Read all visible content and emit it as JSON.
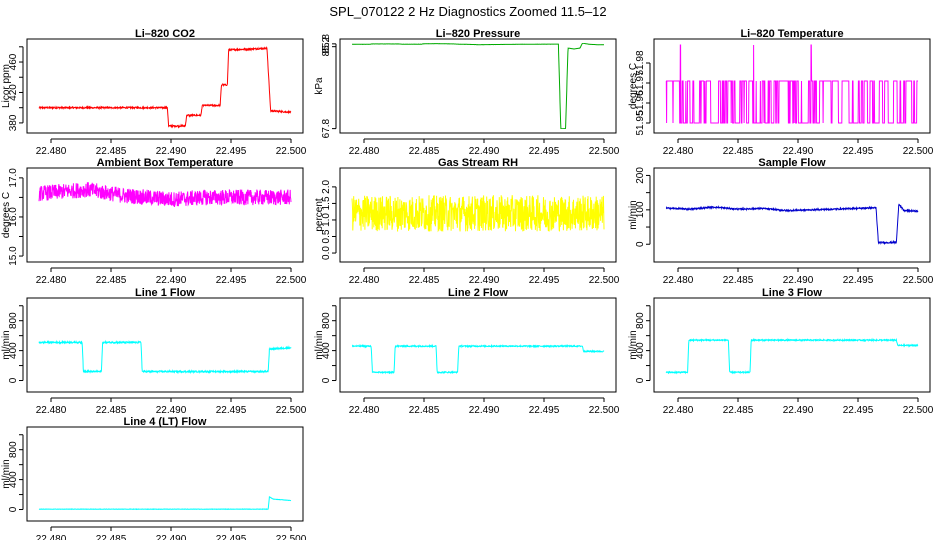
{
  "figure_title": "SPL_070122 2 Hz Diagnostics Zoomed 11.5–12",
  "chart_data": [
    {
      "type": "line",
      "title": "Li–820 CO2",
      "ylabel": "Licor ppm",
      "color": "#ff0000",
      "xlim": [
        22.4785,
        22.5005
      ],
      "ylim": [
        372,
        485
      ],
      "xticks": [
        "22.480",
        "22.485",
        "22.490",
        "22.495",
        "22.500"
      ],
      "yticks": [
        "380",
        "400",
        "420",
        "440",
        "460",
        "480"
      ],
      "ytick_label_every": 2,
      "steps": [
        [
          22.479,
          400
        ],
        [
          22.4897,
          400
        ],
        [
          22.4898,
          376
        ],
        [
          22.4912,
          376
        ],
        [
          22.4913,
          390
        ],
        [
          22.4925,
          390
        ],
        [
          22.4926,
          403
        ],
        [
          22.4941,
          403
        ],
        [
          22.4942,
          430
        ],
        [
          22.4947,
          430
        ],
        [
          22.4948,
          476
        ],
        [
          22.498,
          478
        ],
        [
          22.4983,
          396
        ],
        [
          22.5,
          394
        ]
      ],
      "noise": 1
    },
    {
      "type": "line",
      "title": "Li–820 Pressure",
      "ylabel": "kPa",
      "color": "#00aa00",
      "xlim": [
        22.4785,
        22.5005
      ],
      "ylim": [
        67.72,
        85.98
      ],
      "xticks": [
        "22.480",
        "22.485",
        "22.490",
        "22.495",
        "22.500"
      ],
      "yticks": [
        "67.8",
        "85.2",
        "85.8"
      ],
      "ytick_values": [
        67.8,
        85.2,
        85.8
      ],
      "steps": [
        [
          22.479,
          85.7
        ],
        [
          22.4805,
          85.7
        ],
        [
          22.4806,
          85.78
        ],
        [
          22.483,
          85.78
        ],
        [
          22.4831,
          85.73
        ],
        [
          22.4848,
          85.73
        ],
        [
          22.4849,
          85.8
        ],
        [
          22.486,
          85.85
        ],
        [
          22.4875,
          85.78
        ],
        [
          22.488,
          85.72
        ],
        [
          22.4893,
          85.65
        ],
        [
          22.4895,
          85.62
        ],
        [
          22.4905,
          85.65
        ],
        [
          22.492,
          85.68
        ],
        [
          22.4935,
          85.72
        ],
        [
          22.4962,
          85.75
        ],
        [
          22.4964,
          67.78
        ],
        [
          22.4968,
          67.8
        ],
        [
          22.497,
          84.9
        ],
        [
          22.4975,
          84.7
        ],
        [
          22.498,
          84.9
        ],
        [
          22.4982,
          85.95
        ],
        [
          22.4988,
          85.7
        ],
        [
          22.4995,
          85.62
        ],
        [
          22.5,
          85.6
        ]
      ],
      "noise": 0.01
    },
    {
      "type": "line",
      "title": "Li–820 Temperature",
      "ylabel": "degrees C",
      "color": "#ff00ff",
      "xlim": [
        22.4785,
        22.5005
      ],
      "ylim": [
        51.947,
        51.99
      ],
      "xticks": [
        "22.480",
        "22.485",
        "22.490",
        "22.495",
        "22.500"
      ],
      "yticks": [
        "51.95",
        "51.96",
        "51.97",
        "51.98"
      ],
      "ytick_values": [
        51.95,
        51.96,
        51.97,
        51.98
      ],
      "binary": [
        51.95,
        51.971
      ],
      "spikes": [
        22.4802,
        22.4863,
        22.4911
      ],
      "spike_value": 51.989
    },
    {
      "type": "line",
      "title": "Ambient Box Temperature",
      "ylabel": "degrees C",
      "color": "#ff00ff",
      "xlim": [
        22.4785,
        22.5005
      ],
      "ylim": [
        14.95,
        17.15
      ],
      "xticks": [
        "22.480",
        "22.485",
        "22.490",
        "22.495",
        "22.500"
      ],
      "yticks": [
        "15.0",
        "15.5",
        "16.0",
        "16.5",
        "17.0"
      ],
      "ytick_values": [
        15.0,
        15.5,
        16.0,
        16.5,
        17.0
      ],
      "ytick_label_every": 2,
      "steps": [
        [
          22.479,
          16.6
        ],
        [
          22.483,
          16.7
        ],
        [
          22.486,
          16.55
        ],
        [
          22.49,
          16.45
        ],
        [
          22.493,
          16.5
        ],
        [
          22.496,
          16.5
        ],
        [
          22.5,
          16.5
        ]
      ],
      "noise": 0.2
    },
    {
      "type": "line",
      "title": "Gas Stream RH",
      "ylabel": "percent",
      "color": "#ffff00",
      "xlim": [
        22.4785,
        22.5005
      ],
      "ylim": [
        -0.15,
        2.45
      ],
      "xticks": [
        "22.480",
        "22.485",
        "22.490",
        "22.495",
        "22.500"
      ],
      "yticks": [
        "0.0",
        "0.5",
        "1.0",
        "1.5",
        "2.0"
      ],
      "ytick_values": [
        0.0,
        0.5,
        1.0,
        1.5,
        2.0
      ],
      "steps": [
        [
          22.479,
          1.2
        ],
        [
          22.5,
          1.2
        ]
      ],
      "noise": 0.55
    },
    {
      "type": "line",
      "title": "Sample Flow",
      "ylabel": "ml/min",
      "color": "#0000cc",
      "xlim": [
        22.4785,
        22.5005
      ],
      "ylim": [
        -40,
        210
      ],
      "xticks": [
        "22.480",
        "22.485",
        "22.490",
        "22.495",
        "22.500"
      ],
      "yticks": [
        "0",
        "50",
        "100",
        "150",
        "200"
      ],
      "ytick_values": [
        0,
        50,
        100,
        150,
        200
      ],
      "ytick_label_every": 2,
      "steps": [
        [
          22.479,
          105
        ],
        [
          22.481,
          102
        ],
        [
          22.483,
          108
        ],
        [
          22.485,
          102
        ],
        [
          22.487,
          104
        ],
        [
          22.489,
          98
        ],
        [
          22.491,
          100
        ],
        [
          22.493,
          102
        ],
        [
          22.4965,
          106
        ],
        [
          22.4967,
          5
        ],
        [
          22.4982,
          5
        ],
        [
          22.4984,
          118
        ],
        [
          22.4988,
          98
        ],
        [
          22.5,
          96
        ]
      ],
      "noise": 2
    },
    {
      "type": "line",
      "title": "Line 1 Flow",
      "ylabel": "ml/min",
      "color": "#00ffff",
      "xlim": [
        22.4785,
        22.5005
      ],
      "ylim": [
        -100,
        1050
      ],
      "xticks": [
        "22.480",
        "22.485",
        "22.490",
        "22.495",
        "22.500"
      ],
      "yticks": [
        "0",
        "200",
        "400",
        "600",
        "800",
        "1000"
      ],
      "ytick_values": [
        0,
        200,
        400,
        600,
        800,
        1000
      ],
      "ytick_label_every": 2,
      "steps": [
        [
          22.479,
          510
        ],
        [
          22.4826,
          510
        ],
        [
          22.4827,
          120
        ],
        [
          22.4842,
          120
        ],
        [
          22.4843,
          510
        ],
        [
          22.4875,
          510
        ],
        [
          22.4876,
          120
        ],
        [
          22.4981,
          120
        ],
        [
          22.4982,
          420
        ],
        [
          22.5,
          440
        ]
      ],
      "noise": 10
    },
    {
      "type": "line",
      "title": "Line 2 Flow",
      "ylabel": "ml/min",
      "color": "#00ffff",
      "xlim": [
        22.4785,
        22.5005
      ],
      "ylim": [
        -100,
        1050
      ],
      "xticks": [
        "22.480",
        "22.485",
        "22.490",
        "22.495",
        "22.500"
      ],
      "yticks": [
        "0",
        "200",
        "400",
        "600",
        "800",
        "1000"
      ],
      "ytick_values": [
        0,
        200,
        400,
        600,
        800,
        1000
      ],
      "ytick_label_every": 2,
      "steps": [
        [
          22.479,
          460
        ],
        [
          22.4806,
          460
        ],
        [
          22.4807,
          110
        ],
        [
          22.4825,
          110
        ],
        [
          22.4826,
          460
        ],
        [
          22.486,
          460
        ],
        [
          22.4861,
          110
        ],
        [
          22.4878,
          110
        ],
        [
          22.4879,
          460
        ],
        [
          22.4982,
          460
        ],
        [
          22.4983,
          390
        ],
        [
          22.5,
          390
        ]
      ],
      "noise": 8
    },
    {
      "type": "line",
      "title": "Line 3 Flow",
      "ylabel": "ml/min",
      "color": "#00ffff",
      "xlim": [
        22.4785,
        22.5005
      ],
      "ylim": [
        -100,
        1050
      ],
      "xticks": [
        "22.480",
        "22.485",
        "22.490",
        "22.495",
        "22.500"
      ],
      "yticks": [
        "0",
        "200",
        "400",
        "600",
        "800",
        "1000"
      ],
      "ytick_values": [
        0,
        200,
        400,
        600,
        800,
        1000
      ],
      "ytick_label_every": 2,
      "steps": [
        [
          22.479,
          110
        ],
        [
          22.4808,
          110
        ],
        [
          22.4809,
          540
        ],
        [
          22.4842,
          540
        ],
        [
          22.4843,
          110
        ],
        [
          22.486,
          110
        ],
        [
          22.4861,
          540
        ],
        [
          22.4982,
          540
        ],
        [
          22.4983,
          470
        ],
        [
          22.5,
          470
        ]
      ],
      "noise": 8
    },
    {
      "type": "line",
      "title": "Line 4 (LT) Flow",
      "ylabel": "ml/min",
      "color": "#00ffff",
      "xlim": [
        22.4785,
        22.5005
      ],
      "ylim": [
        -100,
        1050
      ],
      "xticks": [
        "22.480",
        "22.485",
        "22.490",
        "22.495",
        "22.500"
      ],
      "yticks": [
        "0",
        "200",
        "400",
        "600",
        "800",
        "1000"
      ],
      "ytick_values": [
        0,
        200,
        400,
        600,
        800,
        1000
      ],
      "ytick_label_every": 2,
      "steps": [
        [
          22.479,
          5
        ],
        [
          22.4981,
          5
        ],
        [
          22.4982,
          170
        ],
        [
          22.4985,
          140
        ],
        [
          22.5,
          120
        ]
      ],
      "noise": 2
    }
  ]
}
